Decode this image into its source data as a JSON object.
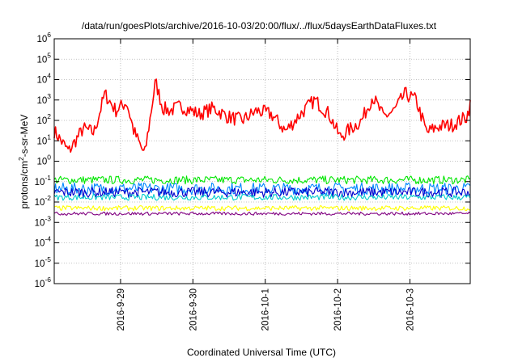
{
  "chart_data": {
    "type": "line",
    "title": "/data/run/goesPlots/archive/2016-10-03/20:00/flux/../flux/5daysEarthDataFluxes.txt",
    "xlabel": "Coordinated Universal Time (UTC)",
    "ylabel": {
      "base": "protons/cm",
      "sup": "2",
      "rest": "-s-sr-MeV"
    },
    "scale": "log",
    "ylim": [
      1e-06,
      1000000.0
    ],
    "xlim": [
      "2016-09-28T02:00",
      "2016-10-03T20:00"
    ],
    "x_ticks": [
      "2016-9-29",
      "2016-9-30",
      "2016-10-1",
      "2016-10-2",
      "2016-10-3"
    ],
    "y_ticks": [
      {
        "base": "10",
        "exp": "6",
        "value": 1000000.0
      },
      {
        "base": "10",
        "exp": "5",
        "value": 100000.0
      },
      {
        "base": "10",
        "exp": "4",
        "value": 10000.0
      },
      {
        "base": "10",
        "exp": "3",
        "value": 1000.0
      },
      {
        "base": "10",
        "exp": "2",
        "value": 100.0
      },
      {
        "base": "10",
        "exp": "1",
        "value": 10.0
      },
      {
        "base": "10",
        "exp": "0",
        "value": 1.0
      },
      {
        "base": "10",
        "exp": "-1",
        "value": 0.1
      },
      {
        "base": "10",
        "exp": "-2",
        "value": 0.01
      },
      {
        "base": "10",
        "exp": "-3",
        "value": 0.001
      },
      {
        "base": "10",
        "exp": "-4",
        "value": 0.0001
      },
      {
        "base": "10",
        "exp": "-5",
        "value": 1e-05
      },
      {
        "base": "10",
        "exp": "-6",
        "value": 1e-06
      }
    ],
    "grid": true,
    "series": [
      {
        "color": "#ff0000",
        "x_days": [
          0,
          0.2,
          0.4,
          0.55,
          0.7,
          0.85,
          1.0,
          1.1,
          1.25,
          1.4,
          1.5,
          1.6,
          1.75,
          1.9,
          2.0,
          2.2,
          2.4,
          2.6,
          2.8,
          3.0,
          3.2,
          3.4,
          3.6,
          3.8,
          3.95,
          4.1,
          4.25,
          4.4,
          4.55,
          4.7,
          4.85,
          5.0,
          5.15,
          5.3,
          5.5,
          5.7,
          5.75
        ],
        "y": [
          30,
          3,
          40,
          25,
          2000,
          300,
          800,
          30,
          2,
          8000,
          400,
          300,
          500,
          300,
          200,
          400,
          150,
          100,
          300,
          200,
          30,
          200,
          1000,
          200,
          15,
          40,
          100,
          1500,
          150,
          300,
          2000,
          1000,
          25,
          50,
          60,
          150,
          600
        ],
        "noise": 0.35
      },
      {
        "color": "#00e600",
        "level": 0.12,
        "noise": 0.2
      },
      {
        "color": "#0088ff",
        "level": 0.045,
        "noise": 0.3
      },
      {
        "color": "#0000cc",
        "level": 0.03,
        "noise": 0.25
      },
      {
        "color": "#00cccc",
        "level": 0.017,
        "noise": 0.15
      },
      {
        "color": "#ffff00",
        "level": 0.005,
        "noise": 0.12
      },
      {
        "color": "#800080",
        "level": 0.0027,
        "noise": 0.08
      }
    ]
  }
}
